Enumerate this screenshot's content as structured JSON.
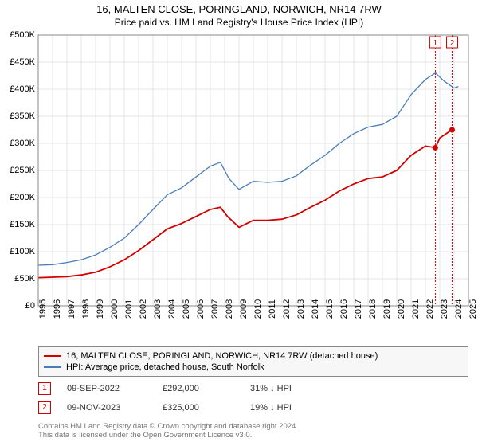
{
  "title_line1": "16, MALTEN CLOSE, PORINGLAND, NORWICH, NR14 7RW",
  "title_line2": "Price paid vs. HM Land Registry's House Price Index (HPI)",
  "chart": {
    "type": "line",
    "x_years": [
      1995,
      1996,
      1997,
      1998,
      1999,
      2000,
      2001,
      2002,
      2003,
      2004,
      2005,
      2006,
      2007,
      2008,
      2009,
      2010,
      2011,
      2012,
      2013,
      2014,
      2015,
      2016,
      2017,
      2018,
      2019,
      2020,
      2021,
      2022,
      2023,
      2024,
      2025
    ],
    "y_ticks": [
      0,
      50000,
      100000,
      150000,
      200000,
      250000,
      300000,
      350000,
      400000,
      450000,
      500000
    ],
    "y_tick_labels": [
      "£0",
      "£50K",
      "£100K",
      "£150K",
      "£200K",
      "£250K",
      "£300K",
      "£350K",
      "£400K",
      "£450K",
      "£500K"
    ],
    "ylim": [
      0,
      500000
    ],
    "xlim": [
      1995,
      2025
    ],
    "grid_color": "#e6e6e6",
    "axis_color": "#888888",
    "background_color": "#ffffff",
    "series": [
      {
        "name": "property",
        "color": "#d40000",
        "width": 1.8,
        "points": [
          [
            1995,
            52000
          ],
          [
            1996,
            53000
          ],
          [
            1997,
            54000
          ],
          [
            1998,
            57000
          ],
          [
            1999,
            62000
          ],
          [
            2000,
            72000
          ],
          [
            2001,
            85000
          ],
          [
            2002,
            102000
          ],
          [
            2003,
            122000
          ],
          [
            2004,
            142000
          ],
          [
            2005,
            152000
          ],
          [
            2006,
            165000
          ],
          [
            2007,
            178000
          ],
          [
            2007.7,
            182000
          ],
          [
            2008.2,
            165000
          ],
          [
            2009,
            145000
          ],
          [
            2010,
            158000
          ],
          [
            2011,
            158000
          ],
          [
            2012,
            160000
          ],
          [
            2013,
            168000
          ],
          [
            2014,
            182000
          ],
          [
            2015,
            195000
          ],
          [
            2016,
            212000
          ],
          [
            2017,
            225000
          ],
          [
            2018,
            235000
          ],
          [
            2019,
            238000
          ],
          [
            2020,
            250000
          ],
          [
            2021,
            278000
          ],
          [
            2022,
            295000
          ],
          [
            2022.7,
            292000
          ],
          [
            2023,
            310000
          ],
          [
            2023.85,
            325000
          ]
        ]
      },
      {
        "name": "hpi",
        "color": "#4a7db8",
        "width": 1.3,
        "points": [
          [
            1995,
            75000
          ],
          [
            1996,
            76000
          ],
          [
            1997,
            80000
          ],
          [
            1998,
            85000
          ],
          [
            1999,
            94000
          ],
          [
            2000,
            108000
          ],
          [
            2001,
            125000
          ],
          [
            2002,
            150000
          ],
          [
            2003,
            178000
          ],
          [
            2004,
            205000
          ],
          [
            2005,
            218000
          ],
          [
            2006,
            238000
          ],
          [
            2007,
            258000
          ],
          [
            2007.7,
            265000
          ],
          [
            2008.3,
            235000
          ],
          [
            2009,
            215000
          ],
          [
            2010,
            230000
          ],
          [
            2011,
            228000
          ],
          [
            2012,
            230000
          ],
          [
            2013,
            240000
          ],
          [
            2014,
            260000
          ],
          [
            2015,
            278000
          ],
          [
            2016,
            300000
          ],
          [
            2017,
            318000
          ],
          [
            2018,
            330000
          ],
          [
            2019,
            335000
          ],
          [
            2020,
            350000
          ],
          [
            2021,
            390000
          ],
          [
            2022,
            418000
          ],
          [
            2022.7,
            430000
          ],
          [
            2023.3,
            415000
          ],
          [
            2024,
            402000
          ],
          [
            2024.3,
            405000
          ]
        ]
      }
    ],
    "sale_markers": [
      {
        "label": "1",
        "year": 2022.69,
        "value": 292000,
        "color": "#d40000"
      },
      {
        "label": "2",
        "year": 2023.86,
        "value": 325000,
        "color": "#d40000"
      }
    ]
  },
  "legend": {
    "items": [
      {
        "color": "#d40000",
        "label": "16, MALTEN CLOSE, PORINGLAND, NORWICH, NR14 7RW (detached house)"
      },
      {
        "color": "#4a7db8",
        "label": "HPI: Average price, detached house, South Norfolk"
      }
    ]
  },
  "sales": [
    {
      "num": "1",
      "date": "09-SEP-2022",
      "price": "£292,000",
      "diff": "31% ↓ HPI",
      "color": "#d40000"
    },
    {
      "num": "2",
      "date": "09-NOV-2023",
      "price": "£325,000",
      "diff": "19% ↓ HPI",
      "color": "#d40000"
    }
  ],
  "footer_line1": "Contains HM Land Registry data © Crown copyright and database right 2024.",
  "footer_line2": "This data is licensed under the Open Government Licence v3.0."
}
